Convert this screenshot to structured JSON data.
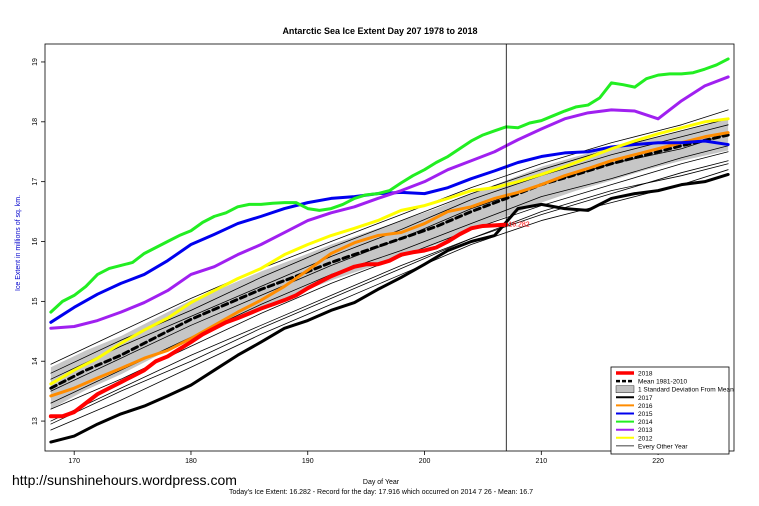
{
  "chart_data": {
    "type": "line",
    "title": "Antarctic Sea Ice Extent Day 207 1978 to 2018",
    "xlabel": "Day of Year",
    "ylabel": "Ice Extent in millions of sq. km.",
    "subtitle": "Today's Ice Extent: 16.282  - Record for the day: 17.916 which occurred on 2014 7 26  - Mean: 16.7",
    "xlim": [
      167.5,
      226.5
    ],
    "ylim": [
      12.5,
      19.3
    ],
    "x_ticks": [
      170,
      180,
      190,
      200,
      210,
      220
    ],
    "y_ticks": [
      13,
      14,
      15,
      16,
      17,
      18,
      19
    ],
    "grid": false,
    "legend_position": "bottom-right",
    "current_day": 207,
    "current_value_label": "16.282",
    "series": [
      {
        "name": "2018",
        "color": "#ff0000",
        "width": 4,
        "dash": "",
        "x": [
          168,
          169,
          170,
          171,
          172,
          173,
          174,
          175,
          176,
          177,
          178,
          179,
          180,
          181,
          182,
          183,
          184,
          185,
          186,
          187,
          188,
          189,
          190,
          191,
          192,
          193,
          194,
          195,
          196,
          197,
          198,
          199,
          200,
          201,
          202,
          203,
          204,
          205,
          206,
          207
        ],
        "y": [
          13.08,
          13.08,
          13.15,
          13.3,
          13.45,
          13.55,
          13.65,
          13.75,
          13.85,
          14.0,
          14.08,
          14.2,
          14.32,
          14.45,
          14.55,
          14.65,
          14.72,
          14.8,
          14.88,
          14.95,
          15.02,
          15.1,
          15.22,
          15.32,
          15.42,
          15.5,
          15.58,
          15.62,
          15.62,
          15.68,
          15.78,
          15.82,
          15.85,
          15.9,
          16.0,
          16.12,
          16.22,
          16.26,
          16.27,
          16.282
        ]
      },
      {
        "name": "Mean 1981-2010",
        "color": "#000000",
        "width": 3,
        "dash": "6,4",
        "x": [
          168,
          171,
          174,
          177,
          180,
          183,
          186,
          189,
          192,
          195,
          198,
          201,
          204,
          207,
          210,
          213,
          216,
          219,
          222,
          226
        ],
        "y": [
          13.55,
          13.85,
          14.1,
          14.4,
          14.7,
          14.95,
          15.2,
          15.42,
          15.65,
          15.85,
          16.05,
          16.25,
          16.5,
          16.72,
          16.95,
          17.12,
          17.3,
          17.45,
          17.6,
          17.78
        ]
      },
      {
        "name": "2017",
        "color": "#000000",
        "width": 3,
        "dash": "",
        "x": [
          168,
          170,
          172,
          174,
          176,
          178,
          180,
          182,
          184,
          186,
          188,
          190,
          192,
          194,
          196,
          198,
          200,
          202,
          204,
          206,
          208,
          210,
          212,
          214,
          216,
          218,
          220,
          222,
          224,
          226
        ],
        "y": [
          12.65,
          12.75,
          12.95,
          13.12,
          13.25,
          13.42,
          13.6,
          13.85,
          14.1,
          14.32,
          14.55,
          14.68,
          14.85,
          14.98,
          15.2,
          15.4,
          15.62,
          15.85,
          16.0,
          16.1,
          16.55,
          16.62,
          16.55,
          16.52,
          16.72,
          16.8,
          16.85,
          16.95,
          17.0,
          17.12
        ]
      },
      {
        "name": "2016",
        "color": "#ff8c00",
        "width": 3,
        "dash": "",
        "x": [
          168,
          170,
          172,
          174,
          176,
          178,
          180,
          182,
          184,
          186,
          188,
          190,
          192,
          194,
          196,
          198,
          200,
          202,
          204,
          206,
          208,
          210,
          212,
          214,
          216,
          218,
          220,
          222,
          224,
          226
        ],
        "y": [
          13.42,
          13.55,
          13.72,
          13.88,
          14.05,
          14.18,
          14.38,
          14.6,
          14.82,
          15.02,
          15.25,
          15.52,
          15.8,
          15.98,
          16.1,
          16.15,
          16.3,
          16.5,
          16.58,
          16.72,
          16.82,
          16.95,
          17.1,
          17.22,
          17.35,
          17.45,
          17.55,
          17.65,
          17.75,
          17.82
        ]
      },
      {
        "name": "2015",
        "color": "#0000ee",
        "width": 3,
        "dash": "",
        "x": [
          168,
          170,
          172,
          174,
          176,
          178,
          180,
          182,
          184,
          186,
          188,
          190,
          192,
          194,
          196,
          198,
          200,
          202,
          204,
          206,
          208,
          210,
          212,
          214,
          216,
          218,
          220,
          222,
          224,
          226
        ],
        "y": [
          14.65,
          14.9,
          15.12,
          15.3,
          15.45,
          15.68,
          15.95,
          16.12,
          16.3,
          16.42,
          16.55,
          16.65,
          16.72,
          16.75,
          16.8,
          16.82,
          16.8,
          16.9,
          17.05,
          17.18,
          17.32,
          17.42,
          17.48,
          17.5,
          17.58,
          17.62,
          17.65,
          17.65,
          17.68,
          17.62
        ]
      },
      {
        "name": "2014",
        "color": "#22ee22",
        "width": 3,
        "dash": "",
        "x": [
          168,
          169,
          170,
          171,
          172,
          173,
          174,
          175,
          176,
          177,
          178,
          179,
          180,
          181,
          182,
          183,
          184,
          185,
          186,
          187,
          188,
          189,
          190,
          191,
          192,
          193,
          194,
          195,
          196,
          197,
          198,
          199,
          200,
          201,
          202,
          203,
          204,
          205,
          206,
          207,
          208,
          209,
          210,
          211,
          212,
          213,
          214,
          215,
          216,
          217,
          218,
          219,
          220,
          221,
          222,
          223,
          224,
          225,
          226
        ],
        "y": [
          14.82,
          15.0,
          15.1,
          15.25,
          15.45,
          15.55,
          15.6,
          15.65,
          15.8,
          15.9,
          16.0,
          16.1,
          16.18,
          16.32,
          16.42,
          16.48,
          16.58,
          16.62,
          16.62,
          16.64,
          16.65,
          16.65,
          16.55,
          16.52,
          16.55,
          16.62,
          16.72,
          16.78,
          16.8,
          16.85,
          16.98,
          17.1,
          17.2,
          17.32,
          17.42,
          17.55,
          17.68,
          17.78,
          17.85,
          17.916,
          17.9,
          17.98,
          18.02,
          18.1,
          18.18,
          18.25,
          18.28,
          18.4,
          18.65,
          18.62,
          18.58,
          18.72,
          18.78,
          18.8,
          18.8,
          18.82,
          18.88,
          18.95,
          19.05
        ]
      },
      {
        "name": "2013",
        "color": "#a020f0",
        "width": 3,
        "dash": "",
        "x": [
          168,
          170,
          172,
          174,
          176,
          178,
          180,
          182,
          184,
          186,
          188,
          190,
          192,
          194,
          196,
          198,
          200,
          202,
          204,
          206,
          208,
          210,
          212,
          214,
          216,
          218,
          220,
          222,
          224,
          226
        ],
        "y": [
          14.55,
          14.58,
          14.68,
          14.82,
          14.98,
          15.18,
          15.45,
          15.58,
          15.78,
          15.95,
          16.15,
          16.35,
          16.48,
          16.58,
          16.72,
          16.85,
          17.0,
          17.2,
          17.35,
          17.5,
          17.7,
          17.88,
          18.05,
          18.15,
          18.2,
          18.18,
          18.05,
          18.35,
          18.6,
          18.75
        ]
      },
      {
        "name": "2012",
        "color": "#ffff00",
        "width": 3,
        "dash": "",
        "x": [
          168,
          170,
          172,
          174,
          176,
          178,
          180,
          182,
          184,
          186,
          188,
          190,
          192,
          194,
          196,
          198,
          200,
          202,
          204,
          206,
          208,
          210,
          212,
          214,
          216,
          218,
          220,
          222,
          224,
          226
        ],
        "y": [
          13.62,
          13.85,
          14.05,
          14.3,
          14.52,
          14.72,
          14.98,
          15.18,
          15.38,
          15.55,
          15.78,
          15.95,
          16.1,
          16.22,
          16.35,
          16.52,
          16.6,
          16.72,
          16.85,
          16.9,
          17.0,
          17.12,
          17.25,
          17.4,
          17.55,
          17.68,
          17.8,
          17.9,
          18.0,
          18.05
        ]
      },
      {
        "name": "Every Other Year",
        "color": "#000000",
        "width": 0.8,
        "dash": "",
        "x": [
          168,
          174,
          180,
          186,
          192,
          198,
          204,
          210,
          216,
          222,
          226
        ],
        "y": [
          13.0,
          13.55,
          14.1,
          14.6,
          15.1,
          15.6,
          16.05,
          16.45,
          16.8,
          17.15,
          17.35
        ]
      },
      {
        "name": "",
        "color": "#000000",
        "width": 0.8,
        "dash": "",
        "x": [
          168,
          174,
          180,
          186,
          192,
          198,
          204,
          210,
          216,
          222,
          226
        ],
        "y": [
          13.3,
          13.85,
          14.4,
          14.95,
          15.45,
          15.85,
          16.3,
          16.75,
          17.05,
          17.4,
          17.6
        ]
      },
      {
        "name": "",
        "color": "#000000",
        "width": 0.8,
        "dash": "",
        "x": [
          168,
          174,
          180,
          186,
          192,
          198,
          204,
          210,
          216,
          222,
          226
        ],
        "y": [
          13.7,
          14.25,
          14.75,
          15.25,
          15.75,
          16.2,
          16.7,
          17.1,
          17.45,
          17.75,
          17.95
        ]
      },
      {
        "name": "",
        "color": "#000000",
        "width": 0.8,
        "dash": "",
        "x": [
          168,
          174,
          180,
          186,
          192,
          198,
          204,
          210,
          216,
          222,
          226
        ],
        "y": [
          13.95,
          14.5,
          15.05,
          15.55,
          16.0,
          16.45,
          16.9,
          17.3,
          17.65,
          17.95,
          18.2
        ]
      },
      {
        "name": "",
        "color": "#000000",
        "width": 0.8,
        "dash": "",
        "x": [
          168,
          174,
          180,
          186,
          192,
          198,
          204,
          210,
          216,
          222,
          226
        ],
        "y": [
          12.85,
          13.35,
          13.9,
          14.45,
          14.95,
          15.45,
          15.95,
          16.35,
          16.65,
          16.95,
          17.2
        ]
      },
      {
        "name": "",
        "color": "#000000",
        "width": 0.8,
        "dash": "",
        "x": [
          168,
          174,
          180,
          186,
          192,
          198,
          204,
          210,
          216,
          222,
          226
        ],
        "y": [
          13.5,
          14.05,
          14.6,
          15.1,
          15.6,
          16.05,
          16.55,
          16.95,
          17.3,
          17.55,
          17.8
        ]
      },
      {
        "name": "",
        "color": "#000000",
        "width": 0.8,
        "dash": "",
        "x": [
          168,
          174,
          180,
          186,
          192,
          198,
          204,
          210,
          216,
          222,
          226
        ],
        "y": [
          13.2,
          13.7,
          14.25,
          14.8,
          15.3,
          15.75,
          16.2,
          16.6,
          16.95,
          17.3,
          17.5
        ]
      },
      {
        "name": "",
        "color": "#000000",
        "width": 0.8,
        "dash": "",
        "x": [
          168,
          174,
          180,
          186,
          192,
          198,
          204,
          210,
          216,
          222,
          226
        ],
        "y": [
          13.8,
          14.35,
          14.85,
          15.4,
          15.9,
          16.35,
          16.8,
          17.2,
          17.55,
          17.85,
          18.05
        ]
      },
      {
        "name": "",
        "color": "#000000",
        "width": 0.8,
        "dash": "",
        "x": [
          168,
          174,
          180,
          186,
          192,
          198,
          204,
          210,
          216,
          222,
          226
        ],
        "y": [
          12.95,
          13.5,
          14.0,
          14.55,
          15.05,
          15.55,
          16.05,
          16.5,
          16.85,
          17.1,
          17.3
        ]
      }
    ],
    "std_band": {
      "name": "1 Standard Deviation From Mean",
      "color": "#c0c0c0",
      "x": [
        168,
        171,
        174,
        177,
        180,
        183,
        186,
        189,
        192,
        195,
        198,
        201,
        204,
        207,
        210,
        213,
        216,
        219,
        222,
        226
      ],
      "lower": [
        13.2,
        13.52,
        13.78,
        14.08,
        14.38,
        14.65,
        14.9,
        15.12,
        15.35,
        15.55,
        15.75,
        15.95,
        16.2,
        16.42,
        16.65,
        16.85,
        17.02,
        17.2,
        17.35,
        17.52
      ],
      "upper": [
        13.9,
        14.18,
        14.42,
        14.72,
        15.02,
        15.25,
        15.5,
        15.72,
        15.95,
        16.15,
        16.35,
        16.55,
        16.8,
        17.02,
        17.25,
        17.42,
        17.58,
        17.7,
        17.85,
        18.04
      ]
    },
    "legend": [
      {
        "label": "2018",
        "color": "#ff0000",
        "kind": "thick"
      },
      {
        "label": "Mean 1981-2010",
        "color": "#000000",
        "kind": "dash"
      },
      {
        "label": "1 Standard Deviation From Mean",
        "color": "#c0c0c0",
        "kind": "box"
      },
      {
        "label": "2017",
        "color": "#000000",
        "kind": "line"
      },
      {
        "label": "2016",
        "color": "#ff8c00",
        "kind": "line"
      },
      {
        "label": "2015",
        "color": "#0000ee",
        "kind": "line"
      },
      {
        "label": "2014",
        "color": "#22ee22",
        "kind": "line"
      },
      {
        "label": "2013",
        "color": "#a020f0",
        "kind": "line"
      },
      {
        "label": "2012",
        "color": "#ffff00",
        "kind": "line"
      },
      {
        "label": "Every Other Year",
        "color": "#000000",
        "kind": "thin"
      }
    ]
  },
  "watermark": "http://sunshinehours.wordpress.com"
}
